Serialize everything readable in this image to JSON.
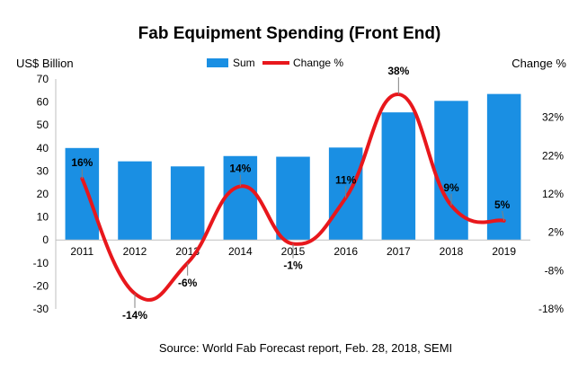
{
  "chart_data": {
    "type": "bar",
    "title": "Fab Equipment Spending (Front End)",
    "ylabel": "US$ Billion",
    "y2label": "Change %",
    "source": "Source: World Fab Forecast report, Feb. 28, 2018, SEMI",
    "categories": [
      "2011",
      "2012",
      "2013",
      "2014",
      "2015",
      "2016",
      "2017",
      "2018",
      "2019"
    ],
    "ylim": [
      -30,
      70
    ],
    "y_ticks": [
      -30,
      -20,
      -10,
      0,
      10,
      20,
      30,
      40,
      50,
      60,
      70
    ],
    "y2lim": [
      -18,
      42
    ],
    "y2_ticks": [
      "-18%",
      "-8%",
      "2%",
      "12%",
      "22%",
      "32%"
    ],
    "y2_tick_values": [
      -18,
      -8,
      2,
      12,
      22,
      32
    ],
    "legend_position": "top",
    "grid": false,
    "colors": {
      "bar": "#1a8fe3",
      "line": "#e8171c"
    },
    "series": [
      {
        "name": "Sum",
        "type": "bar",
        "values": [
          40,
          34.2,
          32,
          36.5,
          36.2,
          40.2,
          55.5,
          60.5,
          63.5
        ]
      },
      {
        "name": "Change %",
        "type": "line",
        "axis": "right",
        "smooth": true,
        "values": [
          16,
          -14,
          -6,
          14,
          -1,
          11,
          38,
          9,
          5
        ],
        "labels": [
          "16%",
          "-14%",
          "-6%",
          "14%",
          "-1%",
          "11%",
          "38%",
          "9%",
          "5%"
        ]
      }
    ]
  }
}
